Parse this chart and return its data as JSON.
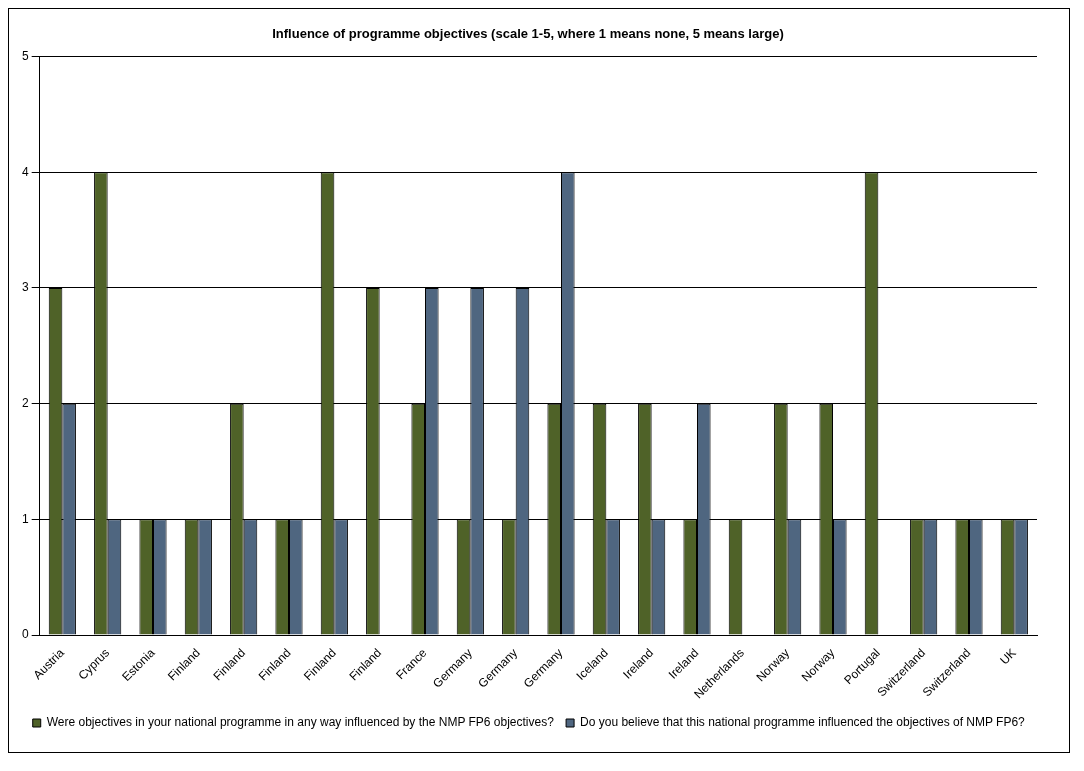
{
  "chart_data": {
    "type": "bar",
    "title": "Influence of programme objectives (scale 1-5, where 1 means none, 5 means large)",
    "categories": [
      "Austria",
      "Cyprus",
      "Estonia",
      "Finland",
      "Finland",
      "Finland",
      "Finland",
      "Finland",
      "France",
      "Germany",
      "Germany",
      "Germany",
      "Iceland",
      "Ireland",
      "Ireland",
      "Netherlands",
      "Norway",
      "Norway",
      "Portugal",
      "Switzerland",
      "Switzerland",
      "UK"
    ],
    "series": [
      {
        "name": "Were objectives in your national programme in any way influenced by the NMP FP6 objectives?",
        "color": "#4f6228",
        "values": [
          3,
          4,
          1,
          1,
          2,
          1,
          4,
          3,
          2,
          1,
          1,
          2,
          2,
          2,
          1,
          1,
          2,
          2,
          4,
          1,
          1,
          1
        ]
      },
      {
        "name": "Do you believe that this national programme influenced the objectives of NMP FP6?",
        "color": "#4f6680",
        "values": [
          2,
          1,
          1,
          1,
          1,
          1,
          1,
          null,
          3,
          3,
          3,
          4,
          1,
          1,
          2,
          null,
          1,
          1,
          null,
          1,
          1,
          1
        ]
      }
    ],
    "ylim": [
      0,
      5
    ],
    "yticks": [
      0,
      1,
      2,
      3,
      4,
      5
    ],
    "grid": "y",
    "legend": "bottom"
  }
}
